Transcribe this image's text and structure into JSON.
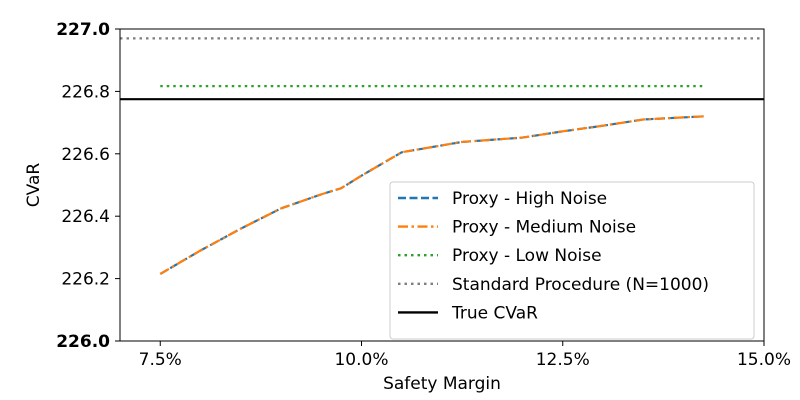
{
  "chart_data": {
    "type": "line",
    "title": "",
    "xlabel": "Safety Margin",
    "ylabel": "CVaR",
    "xlim": [
      0.07,
      0.15
    ],
    "ylim": [
      226.0,
      227.0
    ],
    "x_ticks": [
      {
        "value": 0.075,
        "label": "7.5%"
      },
      {
        "value": 0.1,
        "label": "10.0%"
      },
      {
        "value": 0.125,
        "label": "12.5%"
      },
      {
        "value": 0.15,
        "label": "15.0%"
      }
    ],
    "y_ticks": [
      {
        "value": 226.0,
        "label": "226.0",
        "bold": true
      },
      {
        "value": 226.2,
        "label": "226.2",
        "bold": false
      },
      {
        "value": 226.4,
        "label": "226.4",
        "bold": false
      },
      {
        "value": 226.6,
        "label": "226.6",
        "bold": false
      },
      {
        "value": 226.8,
        "label": "226.8",
        "bold": false
      },
      {
        "value": 227.0,
        "label": "227.0",
        "bold": true
      }
    ],
    "grid": false,
    "legend_position": "lower-right",
    "series": [
      {
        "name": "Proxy - High Noise",
        "color": "#1f77b4",
        "style": "dashed",
        "x": [
          0.075,
          0.08,
          0.085,
          0.09,
          0.095,
          0.0975,
          0.1,
          0.105,
          0.1125,
          0.12,
          0.125,
          0.13,
          0.135,
          0.1425
        ],
        "y": [
          226.215,
          226.29,
          226.36,
          226.425,
          226.47,
          226.49,
          226.53,
          226.605,
          226.638,
          226.652,
          226.672,
          226.69,
          226.71,
          226.72
        ]
      },
      {
        "name": "Proxy - Medium Noise",
        "color": "#ff7f0e",
        "style": "dashdot",
        "x": [
          0.075,
          0.08,
          0.085,
          0.09,
          0.095,
          0.0975,
          0.1,
          0.105,
          0.1125,
          0.12,
          0.125,
          0.13,
          0.135,
          0.1425
        ],
        "y": [
          226.215,
          226.29,
          226.36,
          226.425,
          226.47,
          226.49,
          226.53,
          226.605,
          226.638,
          226.652,
          226.672,
          226.69,
          226.71,
          226.72
        ]
      },
      {
        "name": "Proxy - Low Noise",
        "color": "#2ca02c",
        "style": "dotted",
        "x": [
          0.075,
          0.1425
        ],
        "y": [
          226.817,
          226.817
        ]
      },
      {
        "name": "Standard Procedure (N=1000)",
        "color": "#7f7f7f",
        "style": "dotted",
        "x": [
          0.07,
          0.15
        ],
        "y": [
          226.97,
          226.97
        ]
      },
      {
        "name": "True CVaR",
        "color": "#000000",
        "style": "solid",
        "x": [
          0.07,
          0.15
        ],
        "y": [
          226.775,
          226.775
        ]
      }
    ]
  }
}
